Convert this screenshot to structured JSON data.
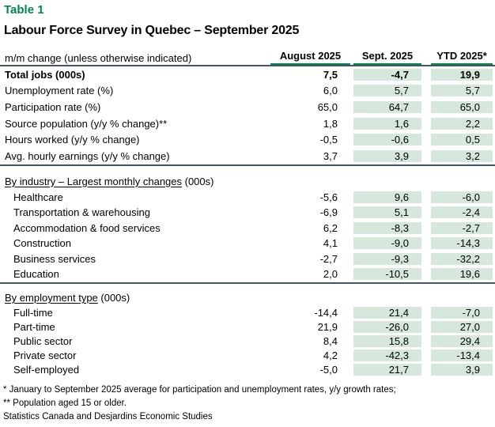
{
  "meta": {
    "table_label": "Table 1",
    "title": "Labour Force Survey in Quebec – September 2025",
    "row_header": "m/m change (unless otherwise indicated)"
  },
  "columns": [
    "August 2025",
    "Sept. 2025",
    "YTD 2025*"
  ],
  "sections": [
    {
      "header": null,
      "rows": [
        {
          "label": "Total jobs (000s)",
          "bold": true,
          "values": [
            "7,5",
            "-4,7",
            "19,9"
          ]
        },
        {
          "label": "Unemployment rate (%)",
          "bold": false,
          "values": [
            "6,0",
            "5,7",
            "5,7"
          ]
        },
        {
          "label": "Participation rate (%)",
          "bold": false,
          "values": [
            "65,0",
            "64,7",
            "65,0"
          ]
        },
        {
          "label": "Source population (y/y % change)**",
          "bold": false,
          "values": [
            "1,8",
            "1,6",
            "2,2"
          ]
        },
        {
          "label": "Hours worked (y/y % change)",
          "bold": false,
          "values": [
            "-0,5",
            "-0,6",
            "0,5"
          ]
        },
        {
          "label": "Avg. hourly earnings (y/y % change)",
          "bold": false,
          "values": [
            "3,7",
            "3,9",
            "3,2"
          ]
        }
      ]
    },
    {
      "header": {
        "underlined": "By industry – Largest monthly changes",
        "suffix": " (000s)"
      },
      "rows": [
        {
          "label": "Healthcare",
          "bold": false,
          "values": [
            "-5,6",
            "9,6",
            "-6,0"
          ]
        },
        {
          "label": "Transportation & warehousing",
          "bold": false,
          "values": [
            "-6,9",
            "5,1",
            "-2,4"
          ]
        },
        {
          "label": "Accommodation & food services",
          "bold": false,
          "values": [
            "6,2",
            "-8,3",
            "-2,7"
          ]
        },
        {
          "label": "Construction",
          "bold": false,
          "values": [
            "4,1",
            "-9,0",
            "-14,3"
          ]
        },
        {
          "label": "Business services",
          "bold": false,
          "values": [
            "-2,7",
            "-9,3",
            "-32,2"
          ]
        },
        {
          "label": "Education",
          "bold": false,
          "values": [
            "2,0",
            "-10,5",
            "19,6"
          ]
        }
      ]
    },
    {
      "header": {
        "underlined": "By employment type",
        "suffix": " (000s)"
      },
      "rows": [
        {
          "label": "Full-time",
          "bold": false,
          "values": [
            "-14,4",
            "21,4",
            "-7,0"
          ]
        },
        {
          "label": "Part-time",
          "bold": false,
          "values": [
            "21,9",
            "-26,0",
            "27,0"
          ]
        },
        {
          "label": "Public sector",
          "bold": false,
          "values": [
            "8,4",
            "15,8",
            "29,4"
          ]
        },
        {
          "label": "Private sector",
          "bold": false,
          "values": [
            "4,2",
            "-42,3",
            "-13,4"
          ]
        },
        {
          "label": "Self-employed",
          "bold": false,
          "values": [
            "-5,0",
            "21,7",
            "3,9"
          ]
        }
      ]
    }
  ],
  "footnotes": [
    "* January to September 2025 average for participation and unemployment rates, y/y growth rates;",
    "** Population aged 15 or older."
  ],
  "source": "Statistics Canada and Desjardins Economic Studies",
  "colors": {
    "accent_green": "#00874E",
    "band_green": "#d6e8db",
    "rule_navy": "#44546A"
  }
}
